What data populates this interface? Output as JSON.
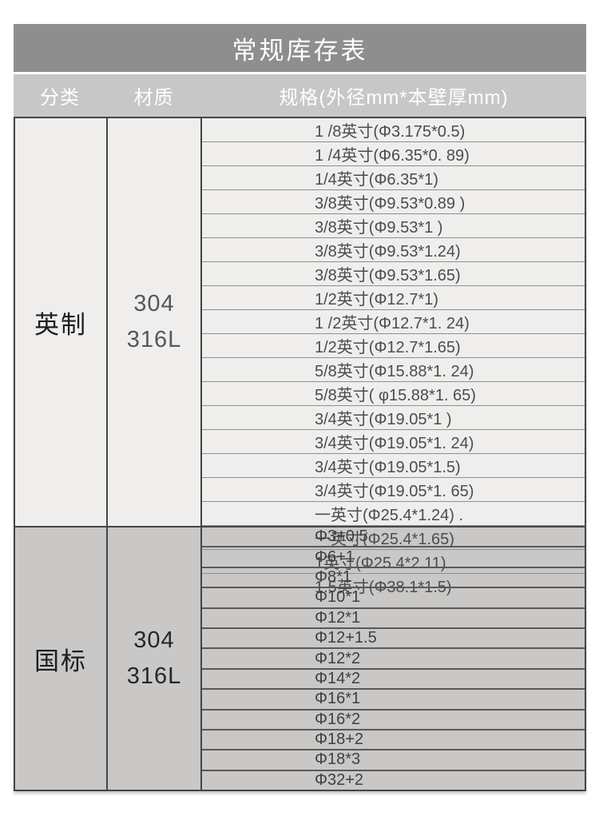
{
  "title": "常规库存表",
  "columns": {
    "category": "分类",
    "material": "材质",
    "spec": "规格(外径mm*本壁厚mm)"
  },
  "sections": [
    {
      "category": "英制",
      "materials": [
        "304",
        "316L"
      ],
      "specs": [
        "1 /8英寸(Φ3.175*0.5)",
        "1 /4英寸(Φ6.35*0. 89)",
        "1/4英寸(Φ6.35*1)",
        "3/8英寸(Φ9.53*0.89 )",
        "3/8英寸(Φ9.53*1 )",
        "3/8英寸(Φ9.53*1.24)",
        "3/8英寸(Φ9.53*1.65)",
        "1/2英寸(Φ12.7*1)",
        "1 /2英寸(Φ12.7*1. 24)",
        "1/2英寸(Φ12.7*1.65)",
        "5/8英寸(Φ15.88*1. 24)",
        "5/8英寸( φ15.88*1. 65)",
        "3/4英寸(Φ19.05*1 )",
        "3/4英寸(Φ19.05*1. 24)",
        "3/4英寸(Φ19.05*1.5)",
        "3/4英寸(Φ19.05*1. 65)",
        "一英寸(Φ25.4*1.24) .",
        "一英寸(Φ25.4*1.65)",
        "1英寸(Φ25.4*2.11)",
        "1.5英寸(Φ38.1*1.5)"
      ]
    },
    {
      "category": "国标",
      "materials": [
        "304",
        "316L"
      ],
      "specs": [
        "Φ3+0.5",
        "Φ6+1",
        "Φ8*1",
        "Φ10*1",
        "Φ12*1",
        "Φ12+1.5",
        "Φ12*2",
        "Φ14*2",
        "Φ16*1",
        "Φ16*2",
        "Φ18+2",
        "Φ18*3",
        "Φ32+2"
      ]
    }
  ],
  "colors": {
    "title_bar_bg": "#8e8e8e",
    "header_bg": "#c7c7c7",
    "imperial_bg": "#efeeec",
    "national_bg": "#c9c8c7",
    "border_dark": "#454545",
    "row_line_light": "#8f8f8f",
    "row_line_dark": "#5a5958",
    "title_text": "#ffffff",
    "header_text": "#ffffff",
    "category_text": "#1d1d1d",
    "spec_text": "#4c4c4c"
  }
}
